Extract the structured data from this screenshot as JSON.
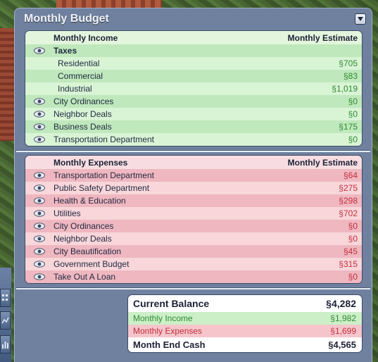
{
  "window": {
    "title": "Monthly Budget"
  },
  "income": {
    "header": "Monthly Income",
    "estimate_header": "Monthly Estimate",
    "rows": [
      {
        "label": "Taxes",
        "value": "",
        "eye": true,
        "bold": true,
        "sub": false
      },
      {
        "label": "Residential",
        "value": "§705",
        "eye": false,
        "bold": false,
        "sub": true
      },
      {
        "label": "Commercial",
        "value": "§83",
        "eye": false,
        "bold": false,
        "sub": true
      },
      {
        "label": "Industrial",
        "value": "§1,019",
        "eye": false,
        "bold": false,
        "sub": true
      },
      {
        "label": "City Ordinances",
        "value": "§0",
        "eye": true,
        "bold": false,
        "sub": false
      },
      {
        "label": "Neighbor Deals",
        "value": "§0",
        "eye": true,
        "bold": false,
        "sub": false
      },
      {
        "label": "Business Deals",
        "value": "§175",
        "eye": true,
        "bold": false,
        "sub": false
      },
      {
        "label": "Transportation Department",
        "value": "§0",
        "eye": true,
        "bold": false,
        "sub": false
      }
    ]
  },
  "expenses": {
    "header": "Monthly Expenses",
    "estimate_header": "Monthly Estimate",
    "rows": [
      {
        "label": "Transportation Department",
        "value": "§64"
      },
      {
        "label": "Public Safety Department",
        "value": "§275"
      },
      {
        "label": "Health & Education",
        "value": "§298"
      },
      {
        "label": "Utilities",
        "value": "§702"
      },
      {
        "label": "City Ordinances",
        "value": "§0"
      },
      {
        "label": "Neighbor Deals",
        "value": "§0"
      },
      {
        "label": "City Beautification",
        "value": "§45"
      },
      {
        "label": "Government Budget",
        "value": "§315"
      },
      {
        "label": "Take Out A Loan",
        "value": "§0"
      }
    ]
  },
  "summary": {
    "current_balance_label": "Current Balance",
    "current_balance_value": "§4,282",
    "monthly_income_label": "Monthly Income",
    "monthly_income_value": "§1,982",
    "monthly_expenses_label": "Monthly Expenses",
    "monthly_expenses_value": "§1,699",
    "month_end_label": "Month End Cash",
    "month_end_value": "§4,565"
  },
  "colors": {
    "income_value": "#2f8a32",
    "expense_value": "#c3303d",
    "window_bg": "#6f819f"
  },
  "icons": {
    "row_toggle": "eye-icon",
    "collapse": "chevron-down-icon"
  }
}
